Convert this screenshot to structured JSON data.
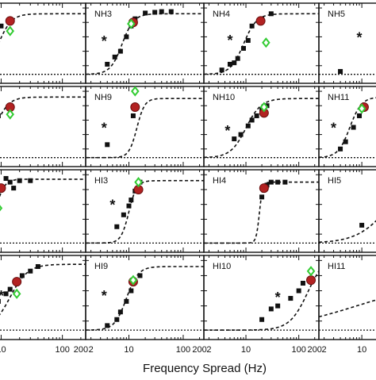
{
  "figure": {
    "xlabel": "Frequency Spread (Hz)",
    "x_ticks": [
      2,
      10,
      100,
      200
    ],
    "x_tick_labels_per_column": [
      [
        "10",
        "100",
        "200"
      ],
      [
        "2",
        "10",
        "100",
        "200"
      ],
      [
        "2",
        "10",
        "100",
        "200"
      ],
      [
        "2",
        "10"
      ]
    ]
  },
  "chart_data": [
    {
      "type": "scatter",
      "panel": "",
      "row": 0,
      "col": 0,
      "xscale": "log",
      "sigmoid": {
        "x50": 9,
        "slope": 4,
        "ceiling": 0.92
      },
      "squares": [
        [
          2,
          0.22
        ],
        [
          3,
          0.26
        ],
        [
          4,
          0.3
        ],
        [
          5,
          0.4
        ],
        [
          8,
          0.66
        ],
        [
          10,
          0.75
        ]
      ],
      "circle": [
        14,
        0.82
      ],
      "diamond": [
        14,
        0.68
      ],
      "asterisk": null
    },
    {
      "type": "scatter",
      "panel": "NH3",
      "row": 0,
      "col": 1,
      "xscale": "log",
      "sigmoid": {
        "x50": 7.5,
        "slope": 4,
        "ceiling": 0.92
      },
      "squares": [
        [
          4,
          0.22
        ],
        [
          5.5,
          0.32
        ],
        [
          7,
          0.4
        ],
        [
          9,
          0.6
        ],
        [
          11,
          0.75
        ],
        [
          13,
          0.85
        ],
        [
          20,
          0.93
        ],
        [
          30,
          0.94
        ],
        [
          40,
          0.95
        ],
        [
          60,
          0.95
        ]
      ],
      "circle": [
        12,
        0.8
      ],
      "diamond": [
        11,
        0.78
      ],
      "asterisk": [
        3.5,
        0.55
      ]
    },
    {
      "type": "scatter",
      "panel": "NH4",
      "row": 0,
      "col": 2,
      "xscale": "log",
      "sigmoid": {
        "x50": 9,
        "slope": 3.5,
        "ceiling": 0.92
      },
      "squares": [
        [
          3.5,
          0.14
        ],
        [
          5,
          0.22
        ],
        [
          6,
          0.24
        ],
        [
          7,
          0.3
        ],
        [
          9,
          0.44
        ],
        [
          11,
          0.55
        ],
        [
          13,
          0.75
        ],
        [
          20,
          0.85
        ],
        [
          30,
          0.92
        ]
      ],
      "circle": [
        19,
        0.82
      ],
      "diamond": [
        24,
        0.52
      ],
      "asterisk": [
        5,
        0.56
      ]
    },
    {
      "type": "scatter",
      "panel": "NH5",
      "row": 0,
      "col": 3,
      "xscale": "log",
      "sigmoid": null,
      "squares": [
        [
          4,
          0.12
        ]
      ],
      "circle": null,
      "diamond": null,
      "asterisk": [
        9,
        0.6
      ]
    },
    {
      "type": "scatter",
      "panel": "",
      "row": 1,
      "col": 0,
      "xscale": "log",
      "sigmoid": {
        "x50": 8,
        "slope": 4,
        "ceiling": 0.92
      },
      "squares": [
        [
          4,
          0.3
        ],
        [
          5,
          0.4
        ],
        [
          7,
          0.55
        ],
        [
          9,
          0.66
        ]
      ],
      "circle": [
        14,
        0.78
      ],
      "diamond": [
        14,
        0.68
      ],
      "asterisk": null
    },
    {
      "type": "scatter",
      "panel": "NH9",
      "row": 1,
      "col": 1,
      "xscale": "log",
      "sigmoid": {
        "x50": 14,
        "slope": 6,
        "ceiling": 0.9
      },
      "squares": [
        [
          4,
          0.26
        ],
        [
          12,
          0.66
        ],
        [
          13,
          0.8
        ]
      ],
      "circle": [
        13,
        0.78
      ],
      "diamond": [
        13,
        1.0
      ],
      "asterisk": [
        3.5,
        0.5
      ]
    },
    {
      "type": "scatter",
      "panel": "NH10",
      "row": 1,
      "col": 2,
      "xscale": "log",
      "sigmoid": {
        "x50": 10,
        "slope": 3,
        "ceiling": 0.9
      },
      "squares": [
        [
          6,
          0.34
        ],
        [
          8,
          0.4
        ],
        [
          11,
          0.52
        ],
        [
          13,
          0.6
        ],
        [
          16,
          0.66
        ],
        [
          20,
          0.74
        ],
        [
          25,
          0.8
        ]
      ],
      "circle": [
        22,
        0.7
      ],
      "diamond": [
        22,
        0.78
      ],
      "asterisk": [
        4.5,
        0.46
      ]
    },
    {
      "type": "scatter",
      "panel": "NH11",
      "row": 1,
      "col": 3,
      "xscale": "log",
      "sigmoid": {
        "x50": 6,
        "slope": 4,
        "ceiling": 0.92
      },
      "squares": [
        [
          4,
          0.2
        ],
        [
          5,
          0.3
        ],
        [
          7,
          0.5
        ],
        [
          9,
          0.66
        ]
      ],
      "circle": [
        11,
        0.78
      ],
      "diamond": [
        10,
        0.76
      ],
      "asterisk": [
        3,
        0.5
      ]
    },
    {
      "type": "scatter",
      "panel": "",
      "row": 2,
      "col": 0,
      "xscale": "log",
      "sigmoid": {
        "x50": 8,
        "slope": 6,
        "ceiling": 0.94
      },
      "squares": [
        [
          12,
          0.95
        ],
        [
          14,
          0.9
        ],
        [
          16,
          0.82
        ],
        [
          20,
          0.92
        ],
        [
          30,
          0.92
        ]
      ],
      "circle": [
        10,
        0.82
      ],
      "diamond": [
        9,
        0.55
      ],
      "asterisk": [
        2.5,
        0.56
      ]
    },
    {
      "type": "scatter",
      "panel": "HI3",
      "row": 2,
      "col": 1,
      "xscale": "log",
      "sigmoid": {
        "x50": 10,
        "slope": 6,
        "ceiling": 0.92
      },
      "squares": [
        [
          6,
          0.3
        ],
        [
          8,
          0.46
        ],
        [
          10,
          0.58
        ],
        [
          11,
          0.66
        ],
        [
          13,
          0.78
        ],
        [
          16,
          0.9
        ]
      ],
      "circle": [
        15,
        0.8
      ],
      "diamond": [
        15,
        0.9
      ],
      "asterisk": [
        5,
        0.6
      ]
    },
    {
      "type": "scatter",
      "panel": "HI4",
      "row": 2,
      "col": 2,
      "xscale": "log",
      "sigmoid": {
        "x50": 18,
        "slope": 14,
        "ceiling": 0.9
      },
      "squares": [
        [
          20,
          0.7
        ],
        [
          25,
          0.86
        ],
        [
          30,
          0.9
        ],
        [
          40,
          0.9
        ],
        [
          55,
          0.9
        ]
      ],
      "circle": [
        22,
        0.82
      ],
      "diamond": null,
      "asterisk": null
    },
    {
      "type": "scatter",
      "panel": "HI5",
      "row": 2,
      "col": 3,
      "xscale": "log",
      "sigmoid": {
        "x50": 30,
        "slope": 1.5,
        "ceiling": 1.0
      },
      "squares": [
        [
          10,
          0.32
        ]
      ],
      "circle": null,
      "diamond": null,
      "asterisk": null
    },
    {
      "type": "scatter",
      "panel": "",
      "row": 3,
      "col": 0,
      "xscale": "log",
      "sigmoid": {
        "x50": 14,
        "slope": 3,
        "ceiling": 0.95
      },
      "squares": [
        [
          6,
          0.3
        ],
        [
          9,
          0.46
        ],
        [
          12,
          0.56
        ],
        [
          14,
          0.62
        ],
        [
          17,
          0.72
        ],
        [
          22,
          0.8
        ],
        [
          30,
          0.86
        ],
        [
          40,
          0.92
        ]
      ],
      "circle": [
        18,
        0.72
      ],
      "diamond": [
        18,
        0.56
      ],
      "asterisk": [
        10,
        0.54
      ]
    },
    {
      "type": "scatter",
      "panel": "HI9",
      "row": 3,
      "col": 1,
      "xscale": "log",
      "sigmoid": {
        "x50": 9,
        "slope": 4,
        "ceiling": 0.92
      },
      "squares": [
        [
          4,
          0.14
        ],
        [
          6,
          0.22
        ],
        [
          7,
          0.32
        ],
        [
          9,
          0.46
        ],
        [
          11,
          0.6
        ],
        [
          13,
          0.72
        ],
        [
          16,
          0.8
        ]
      ],
      "circle": [
        12,
        0.72
      ],
      "diamond": [
        12,
        0.74
      ],
      "asterisk": [
        3.5,
        0.54
      ]
    },
    {
      "type": "scatter",
      "panel": "HI10",
      "row": 3,
      "col": 2,
      "xscale": "log",
      "sigmoid": {
        "x50": 150,
        "slope": 2.5,
        "ceiling": 1.1
      },
      "squares": [
        [
          20,
          0.22
        ],
        [
          30,
          0.36
        ],
        [
          40,
          0.4
        ],
        [
          70,
          0.5
        ],
        [
          100,
          0.6
        ],
        [
          120,
          0.7
        ]
      ],
      "circle": [
        170,
        0.74
      ],
      "diamond": [
        170,
        0.86
      ],
      "asterisk": [
        40,
        0.52
      ]
    },
    {
      "type": "scatter",
      "panel": "HI11",
      "row": 3,
      "col": 3,
      "xscale": "log",
      "sigmoid": {
        "x50": 8,
        "slope": 0.6,
        "ceiling": 0.72
      },
      "squares": [],
      "circle": null,
      "diamond": null,
      "asterisk": null
    }
  ],
  "marker_colors": {
    "square": "#111111",
    "circle": "#b22222",
    "circle_edge": "#6b0f0f",
    "diamond": "#33cc33",
    "curve": "#111111"
  }
}
